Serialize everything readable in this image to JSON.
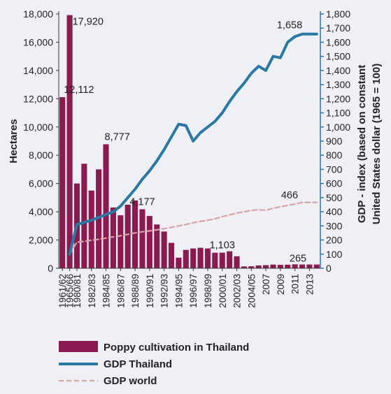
{
  "chart_data": {
    "type": "bar",
    "ylabel_left": "Hectares",
    "ylabel_right": [
      "GDP - index (based on constant",
      "United States dollar (1965 = 100)"
    ],
    "ylim_left": [
      0,
      18000
    ],
    "ylim_right": [
      0,
      1800
    ],
    "yticks_left": [
      "0",
      "2,000",
      "4,000",
      "6,000",
      "8,000",
      "10,000",
      "12,000",
      "14,000",
      "16,000",
      "18,000"
    ],
    "yticks_right": [
      "0",
      "100",
      "200",
      "300",
      "400",
      "500",
      "600",
      "700",
      "800",
      "900",
      "1,000",
      "1,100",
      "1,200",
      "1,300",
      "1,400",
      "1,500",
      "1,600",
      "1,700",
      "1,800"
    ],
    "x_periods": [
      "1961/62",
      "1965/66",
      "1980/81",
      "1981/82",
      "1982/83",
      "1983/84",
      "1984/85",
      "1985/86",
      "1986/87",
      "1987/88",
      "1988/89",
      "1989/90",
      "1990/91",
      "1991/92",
      "1992/93",
      "1993/94",
      "1994/95",
      "1995/96",
      "1996/97",
      "1997/98",
      "1998/99",
      "1999/00",
      "2000/01",
      "2001/02",
      "2002/03",
      "2003/04",
      "2004/05",
      "2005",
      "2006",
      "2007",
      "2008",
      "2009",
      "2010",
      "2011",
      "2012",
      "2013"
    ],
    "x_tick_labels": [
      "1961/62",
      "1965/66",
      "1980/81",
      "",
      "1982/83",
      "",
      "1984/85",
      "",
      "1986/87",
      "",
      "1988/89",
      "",
      "1990/91",
      "",
      "1992/93",
      "",
      "1994/95",
      "",
      "1996/97",
      "",
      "1998/99",
      "",
      "2000/01",
      "",
      "2002/03",
      "",
      "2004/05",
      "",
      "2007",
      "",
      "2009",
      "",
      "2011",
      "",
      "2013",
      ""
    ],
    "colors": {
      "bars": "#8a1a4f",
      "gdp_thailand": "#2a79a3",
      "gdp_world": "#d9a3a8",
      "axis_left": "#333333",
      "axis_right": "#2a79a3"
    },
    "series": [
      {
        "name": "Poppy cultivation in Thailand",
        "type": "bar",
        "axis": "left",
        "values": [
          12112,
          17920,
          6000,
          7400,
          5500,
          7000,
          8777,
          4300,
          3750,
          4500,
          4800,
          4177,
          3700,
          3100,
          2600,
          1800,
          750,
          1300,
          1400,
          1450,
          1400,
          1100,
          1103,
          1200,
          850,
          130,
          140,
          200,
          220,
          260,
          240,
          250,
          280,
          265,
          265,
          265
        ]
      },
      {
        "name": "GDP Thailand",
        "type": "line",
        "axis": "right",
        "values": [
          null,
          100,
          310,
          325,
          340,
          360,
          380,
          400,
          440,
          500,
          560,
          630,
          690,
          760,
          840,
          930,
          1020,
          1010,
          900,
          960,
          1000,
          1040,
          1100,
          1180,
          1250,
          1310,
          1380,
          1430,
          1400,
          1500,
          1490,
          1600,
          1640,
          1658,
          1658,
          1658
        ]
      },
      {
        "name": "GDP world",
        "type": "line",
        "axis": "right",
        "values": [
          null,
          100,
          185,
          190,
          198,
          205,
          213,
          222,
          230,
          240,
          250,
          258,
          265,
          272,
          280,
          290,
          300,
          310,
          322,
          332,
          340,
          350,
          365,
          378,
          390,
          400,
          410,
          415,
          410,
          425,
          435,
          445,
          455,
          466,
          466,
          466
        ]
      }
    ],
    "annotations": [
      {
        "text": "12,112",
        "series": 0,
        "index": 0
      },
      {
        "text": "17,920",
        "series": 0,
        "index": 1
      },
      {
        "text": "8,777",
        "series": 0,
        "index": 6
      },
      {
        "text": "4,177",
        "series": 0,
        "index": 11
      },
      {
        "text": "1,103",
        "series": 0,
        "index": 22
      },
      {
        "text": "265",
        "series": 0,
        "index": 33
      },
      {
        "text": "1,658",
        "series": 1,
        "index": 33
      },
      {
        "text": "466",
        "series": 2,
        "index": 33
      }
    ],
    "legend": [
      "Poppy cultivation in Thailand",
      "GDP Thailand",
      "GDP world"
    ],
    "legend_position": "bottom-center",
    "grid": false
  }
}
